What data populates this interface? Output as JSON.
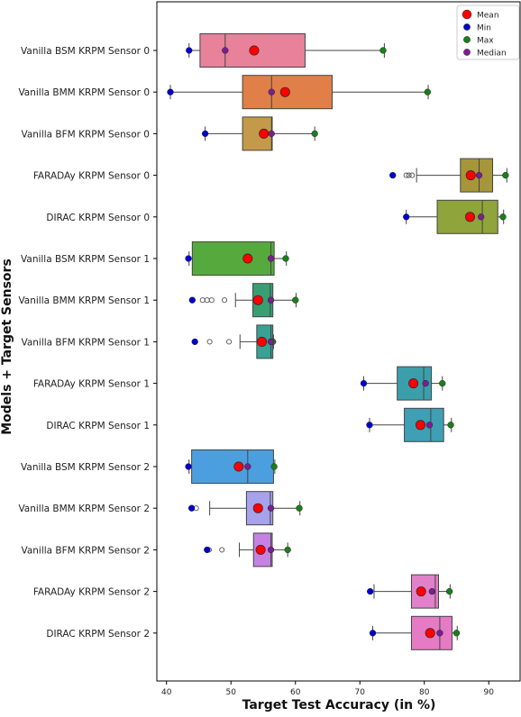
{
  "chart_data": {
    "type": "boxplot",
    "orientation": "horizontal",
    "xlabel": "Target Test Accuracy (in %)",
    "ylabel": "Models + Target Sensors",
    "xlim": [
      38.5,
      95
    ],
    "xticks": [
      40,
      50,
      60,
      70,
      80,
      90
    ],
    "grid": false,
    "legend_position": "top-right",
    "legend": [
      {
        "label": "Mean",
        "color": "#ff0000",
        "size": "large"
      },
      {
        "label": "Min",
        "color": "#0000cc",
        "size": "small"
      },
      {
        "label": "Max",
        "color": "#1a7f1a",
        "size": "small"
      },
      {
        "label": "Median",
        "color": "#7a1f8f",
        "size": "small"
      }
    ],
    "categories": [
      {
        "label": "Vanilla BSM KRPM Sensor 0",
        "color": "#e8819a",
        "whisker_low": 43.5,
        "q1": 45.2,
        "median": 49.1,
        "q3": 61.5,
        "whisker_high": 73.8,
        "mean": 53.6,
        "min": 43.5,
        "max": 73.6,
        "median_marker": 49.1,
        "outliers": []
      },
      {
        "label": "Vanilla BMM KRPM Sensor 0",
        "color": "#e07f47",
        "whisker_low": 40.6,
        "q1": 51.8,
        "median": 56.3,
        "q3": 65.7,
        "whisker_high": 80.6,
        "mean": 58.4,
        "min": 40.6,
        "max": 80.5,
        "median_marker": 56.3,
        "outliers": []
      },
      {
        "label": "Vanilla BFM KRPM Sensor 0",
        "color": "#c49a4a",
        "whisker_low": 46.0,
        "q1": 51.8,
        "median": 56.3,
        "q3": 56.4,
        "whisker_high": 63.0,
        "mean": 55.1,
        "min": 46.0,
        "max": 63.0,
        "median_marker": 56.3,
        "outliers": []
      },
      {
        "label": "FARADAy KRPM Sensor 0",
        "color": "#a69639",
        "whisker_low": 78.8,
        "q1": 85.6,
        "median": 88.5,
        "q3": 90.6,
        "whisker_high": 92.8,
        "mean": 87.2,
        "min": 75.1,
        "max": 92.6,
        "median_marker": 88.5,
        "outliers": [
          77.2,
          77.6,
          78.1
        ]
      },
      {
        "label": "DIRAC KRPM Sensor 0",
        "color": "#8fa43b",
        "whisker_low": 77.2,
        "q1": 82.0,
        "median": 89.0,
        "q3": 91.4,
        "whisker_high": 92.3,
        "mean": 87.1,
        "min": 77.2,
        "max": 92.2,
        "median_marker": 88.8,
        "outliers": []
      },
      {
        "label": "Vanilla BSM KRPM Sensor 1",
        "color": "#56aa3d",
        "whisker_low": 43.5,
        "q1": 44.0,
        "median": 56.2,
        "q3": 56.7,
        "whisker_high": 58.6,
        "mean": 52.6,
        "min": 43.4,
        "max": 58.5,
        "median_marker": 56.2,
        "outliers": []
      },
      {
        "label": "Vanilla BMM KRPM Sensor 1",
        "color": "#3a9e72",
        "whisker_low": 50.7,
        "q1": 53.4,
        "median": 56.1,
        "q3": 56.5,
        "whisker_high": 60.1,
        "mean": 54.2,
        "min": 44.0,
        "max": 60.0,
        "median_marker": 56.2,
        "outliers": [
          45.6,
          46.3,
          47.0,
          49.0
        ]
      },
      {
        "label": "Vanilla BFM KRPM Sensor 1",
        "color": "#3aa195",
        "whisker_low": 51.4,
        "q1": 54.0,
        "median": 56.2,
        "q3": 56.5,
        "whisker_high": 56.6,
        "mean": 54.8,
        "min": 44.4,
        "max": 56.5,
        "median_marker": 56.2,
        "outliers": [
          46.7,
          49.7
        ]
      },
      {
        "label": "FARADAy KRPM Sensor 1",
        "color": "#3a9faa",
        "whisker_low": 70.6,
        "q1": 75.8,
        "median": 79.9,
        "q3": 81.1,
        "whisker_high": 82.8,
        "mean": 78.3,
        "min": 70.6,
        "max": 82.8,
        "median_marker": 80.2,
        "outliers": []
      },
      {
        "label": "DIRAC KRPM Sensor 1",
        "color": "#3f9fb5",
        "whisker_low": 71.5,
        "q1": 76.9,
        "median": 81.0,
        "q3": 83.0,
        "whisker_high": 84.2,
        "mean": 79.4,
        "min": 71.5,
        "max": 84.1,
        "median_marker": 80.8,
        "outliers": []
      },
      {
        "label": "Vanilla BSM KRPM Sensor 2",
        "color": "#4b9fdf",
        "whisker_low": 43.5,
        "q1": 43.9,
        "median": 52.6,
        "q3": 56.6,
        "whisker_high": 56.8,
        "mean": 51.2,
        "min": 43.4,
        "max": 56.7,
        "median_marker": 52.6,
        "outliers": []
      },
      {
        "label": "Vanilla BMM KRPM Sensor 2",
        "color": "#a8a1ec",
        "whisker_low": 46.7,
        "q1": 52.4,
        "median": 56.1,
        "q3": 56.5,
        "whisker_high": 60.7,
        "mean": 54.2,
        "min": 43.9,
        "max": 60.6,
        "median_marker": 56.2,
        "outliers": [
          44.6
        ]
      },
      {
        "label": "Vanilla BFM KRPM Sensor 2",
        "color": "#c682e3",
        "whisker_low": 51.3,
        "q1": 53.5,
        "median": 56.2,
        "q3": 56.4,
        "whisker_high": 58.8,
        "mean": 54.6,
        "min": 46.3,
        "max": 58.8,
        "median_marker": 56.2,
        "outliers": [
          46.6,
          48.6
        ]
      },
      {
        "label": "FARADAy KRPM Sensor 2",
        "color": "#e181c9",
        "whisker_low": 72.2,
        "q1": 78.0,
        "median": 81.7,
        "q3": 82.2,
        "whisker_high": 84.0,
        "mean": 79.5,
        "min": 71.6,
        "max": 83.9,
        "median_marker": 81.2,
        "outliers": []
      },
      {
        "label": "DIRAC KRPM Sensor 2",
        "color": "#e47bc4",
        "whisker_low": 72.0,
        "q1": 78.0,
        "median": 82.4,
        "q3": 84.3,
        "whisker_high": 85.1,
        "mean": 80.9,
        "min": 72.0,
        "max": 85.0,
        "median_marker": 82.4,
        "outliers": []
      }
    ]
  }
}
